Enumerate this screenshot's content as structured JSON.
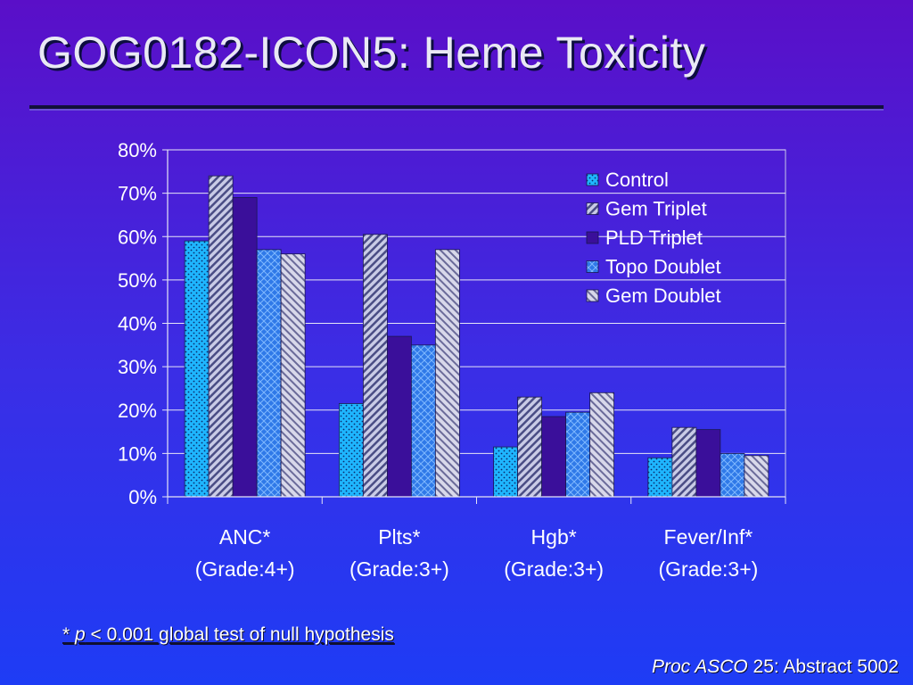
{
  "slide": {
    "title": "GOG0182-ICON5:  Heme Toxicity",
    "footnote_star": "* ",
    "footnote_p": "p",
    "footnote_rest": " < 0.001 global test of null hypothesis",
    "citation_journal": "Proc ASCO",
    "citation_rest": " 25: Abstract 5002"
  },
  "colors": {
    "control": "#1fb6ff",
    "gem_triplet": "#9fa3c8",
    "pld_triplet": "#3a0f9a",
    "topo_doublet": "#2f79e8",
    "gem_doublet": "#b9b9d6"
  },
  "chart_data": {
    "type": "bar",
    "categories": [
      [
        "ANC*",
        "(Grade:4+)"
      ],
      [
        "Plts*",
        "(Grade:3+)"
      ],
      [
        "Hgb*",
        "(Grade:3+)"
      ],
      [
        "Fever/Inf*",
        "(Grade:3+)"
      ]
    ],
    "series": [
      {
        "name": "Control",
        "values": [
          59,
          21.5,
          11.5,
          9
        ]
      },
      {
        "name": "Gem Triplet",
        "values": [
          74,
          60.5,
          23,
          16
        ]
      },
      {
        "name": "PLD Triplet",
        "values": [
          69,
          37,
          18.5,
          15.5
        ]
      },
      {
        "name": "Topo Doublet",
        "values": [
          57,
          35,
          19.5,
          10
        ]
      },
      {
        "name": "Gem Doublet",
        "values": [
          56,
          57,
          24,
          9.5
        ]
      }
    ],
    "ylim": [
      0,
      80
    ],
    "yticks": [
      "0%",
      "10%",
      "20%",
      "30%",
      "40%",
      "50%",
      "60%",
      "70%",
      "80%"
    ],
    "grid": true,
    "legend_position": "top-right"
  }
}
